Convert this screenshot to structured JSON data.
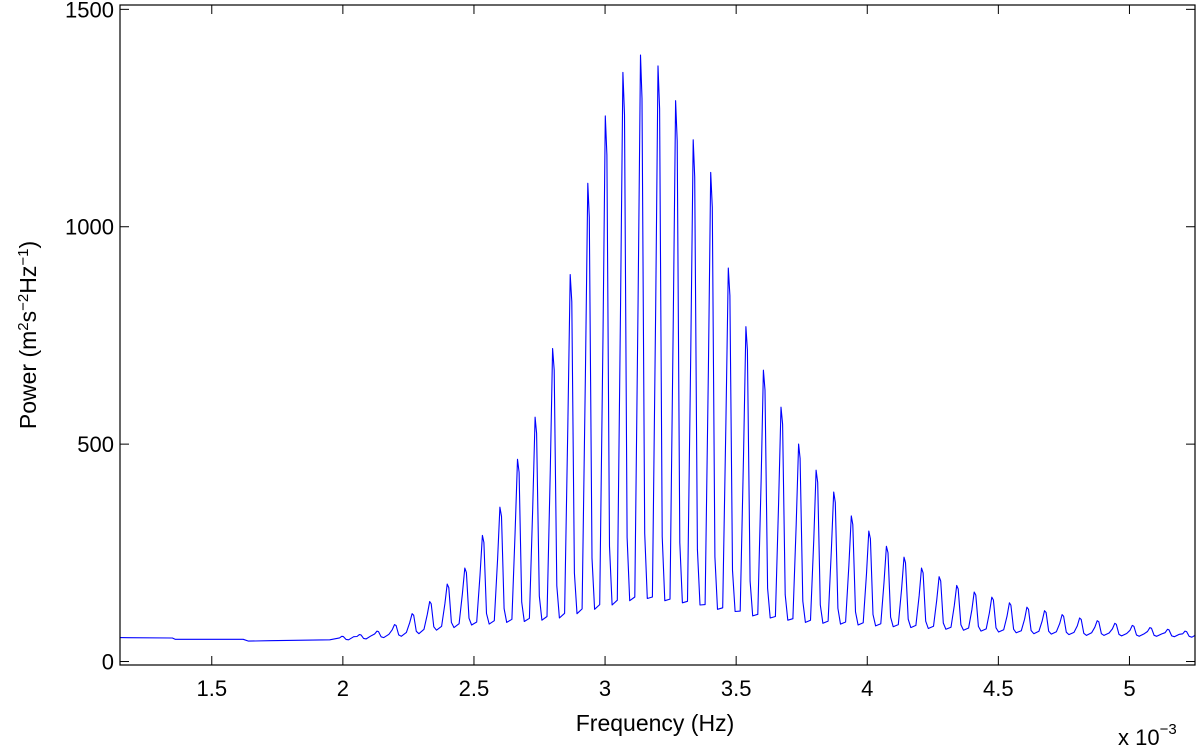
{
  "chart_data": {
    "type": "line",
    "title": "",
    "xlabel": "Frequency (Hz)",
    "ylabel": "Power (m²s⁻²Hz⁻¹)",
    "ylabel_parts": {
      "pre": "Power (m",
      "sup1": "2",
      "mid1": "s",
      "sup2": "−2",
      "mid2": "Hz",
      "sup3": "−1",
      "post": ")"
    },
    "x_multiplier": {
      "base": "x 10",
      "exponent": "−3"
    },
    "xlim": [
      1.15,
      5.25
    ],
    "ylim": [
      -8,
      1510
    ],
    "xticks": [
      1.5,
      2,
      2.5,
      3,
      3.5,
      4,
      4.5,
      5
    ],
    "xtick_labels": [
      "1.5",
      "2",
      "2.5",
      "3",
      "3.5",
      "4",
      "4.5",
      "5"
    ],
    "yticks": [
      0,
      500,
      1000,
      1500
    ],
    "ytick_labels": [
      "0",
      "500",
      "1000",
      "1500"
    ],
    "grid": false,
    "legend": "none",
    "series": [
      {
        "color": "#0000ff",
        "baseline_points": [
          [
            1.15,
            55
          ],
          [
            1.35,
            54
          ],
          [
            1.36,
            51
          ],
          [
            1.62,
            51
          ],
          [
            1.64,
            47
          ],
          [
            1.72,
            48
          ],
          [
            1.95,
            50
          ]
        ],
        "peaks": [
          [
            2.0,
            58,
            50
          ],
          [
            2.067,
            62,
            52
          ],
          [
            2.134,
            70,
            55
          ],
          [
            2.201,
            85,
            58
          ],
          [
            2.268,
            110,
            64
          ],
          [
            2.335,
            138,
            72
          ],
          [
            2.402,
            178,
            78
          ],
          [
            2.469,
            215,
            84
          ],
          [
            2.536,
            290,
            86
          ],
          [
            2.603,
            355,
            90
          ],
          [
            2.67,
            465,
            92
          ],
          [
            2.737,
            562,
            95
          ],
          [
            2.804,
            720,
            100
          ],
          [
            2.871,
            890,
            110
          ],
          [
            2.938,
            1100,
            120
          ],
          [
            3.005,
            1255,
            130
          ],
          [
            3.072,
            1355,
            140
          ],
          [
            3.139,
            1395,
            145
          ],
          [
            3.206,
            1370,
            140
          ],
          [
            3.273,
            1290,
            135
          ],
          [
            3.34,
            1200,
            130
          ],
          [
            3.407,
            1125,
            120
          ],
          [
            3.474,
            905,
            115
          ],
          [
            3.541,
            770,
            105
          ],
          [
            3.608,
            670,
            100
          ],
          [
            3.675,
            585,
            95
          ],
          [
            3.742,
            500,
            90
          ],
          [
            3.809,
            440,
            88
          ],
          [
            3.876,
            390,
            86
          ],
          [
            3.943,
            335,
            84
          ],
          [
            4.01,
            300,
            82
          ],
          [
            4.077,
            265,
            80
          ],
          [
            4.144,
            240,
            78
          ],
          [
            4.211,
            215,
            76
          ],
          [
            4.278,
            195,
            74
          ],
          [
            4.345,
            175,
            72
          ],
          [
            4.412,
            160,
            70
          ],
          [
            4.479,
            148,
            68
          ],
          [
            4.546,
            135,
            66
          ],
          [
            4.613,
            125,
            64
          ],
          [
            4.68,
            117,
            63
          ],
          [
            4.747,
            108,
            62
          ],
          [
            4.814,
            100,
            60
          ],
          [
            4.881,
            94,
            60
          ],
          [
            4.948,
            88,
            59
          ],
          [
            5.015,
            83,
            58
          ],
          [
            5.082,
            78,
            58
          ],
          [
            5.149,
            74,
            57
          ],
          [
            5.216,
            70,
            56
          ]
        ],
        "end_point": [
          5.25,
          60
        ]
      }
    ]
  }
}
